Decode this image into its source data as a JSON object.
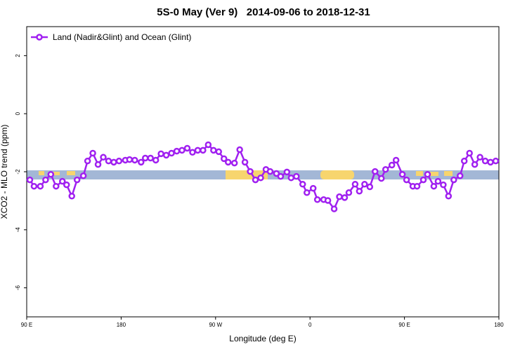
{
  "chart_data": {
    "type": "line",
    "title": "5S-0 May (Ver 9)   2014-09-06 to 2018-12-31",
    "x_label": "Longitude (deg E)",
    "y_label": "XCO2 - MLO trend (ppm)",
    "xlim": [
      90,
      540
    ],
    "ylim": [
      -7,
      3
    ],
    "xticks": [
      {
        "value": 90,
        "label": "90 E"
      },
      180,
      {
        "value": 270,
        "label": "90 W"
      },
      {
        "value": 360,
        "label": "0"
      },
      {
        "value": 450,
        "label": "90 E"
      },
      {
        "value": 540,
        "label": "180"
      }
    ],
    "yticks": [
      2,
      0,
      -2,
      -4,
      -6
    ],
    "legend": "top-left",
    "series": [
      {
        "name": "Land (Nadir&Glint) and Ocean (Glint)",
        "color": "#a020f0",
        "x": [
          93,
          97,
          103,
          108,
          113,
          118,
          124,
          128,
          133,
          138,
          144,
          148,
          153,
          158,
          163,
          168,
          173,
          178,
          184,
          188,
          193,
          199,
          203,
          208,
          213,
          218,
          223,
          228,
          233,
          238,
          243,
          248,
          253,
          258,
          263,
          268,
          273,
          278,
          282,
          288,
          293,
          298,
          303,
          308,
          313,
          318,
          322,
          328,
          332,
          338,
          342,
          347,
          353,
          357,
          363,
          367,
          373,
          377,
          383,
          388,
          393,
          397,
          403,
          407,
          412,
          417,
          422,
          428,
          432,
          438,
          442,
          448,
          452,
          458,
          462,
          468,
          472,
          478,
          482,
          487,
          492,
          497,
          503,
          507,
          512,
          517,
          522,
          527,
          532,
          537
        ],
        "values": [
          -2.28,
          -2.5,
          -2.5,
          -2.28,
          -2.09,
          -2.5,
          -2.33,
          -2.45,
          -2.84,
          -2.28,
          -2.14,
          -1.63,
          -1.36,
          -1.75,
          -1.5,
          -1.63,
          -1.67,
          -1.63,
          -1.6,
          -1.58,
          -1.6,
          -1.67,
          -1.53,
          -1.53,
          -1.6,
          -1.38,
          -1.43,
          -1.36,
          -1.29,
          -1.26,
          -1.19,
          -1.33,
          -1.26,
          -1.26,
          -1.07,
          -1.26,
          -1.31,
          -1.55,
          -1.67,
          -1.7,
          -1.24,
          -1.67,
          -1.99,
          -2.28,
          -2.21,
          -1.92,
          -1.99,
          -2.06,
          -2.16,
          -2.01,
          -2.21,
          -2.16,
          -2.43,
          -2.72,
          -2.57,
          -2.96,
          -2.96,
          -2.99,
          -3.28,
          -2.86,
          -2.89,
          -2.72,
          -2.43,
          -2.67,
          -2.43,
          -2.52,
          -1.99,
          -2.23,
          -1.92,
          -1.77,
          -1.6,
          -2.09,
          -2.28,
          -2.5,
          -2.5,
          -2.28,
          -2.09,
          -2.5,
          -2.33,
          -2.45,
          -2.84,
          -2.28,
          -2.14,
          -1.63,
          -1.36,
          -1.75,
          -1.5,
          -1.63,
          -1.67,
          -1.63
        ]
      }
    ]
  }
}
